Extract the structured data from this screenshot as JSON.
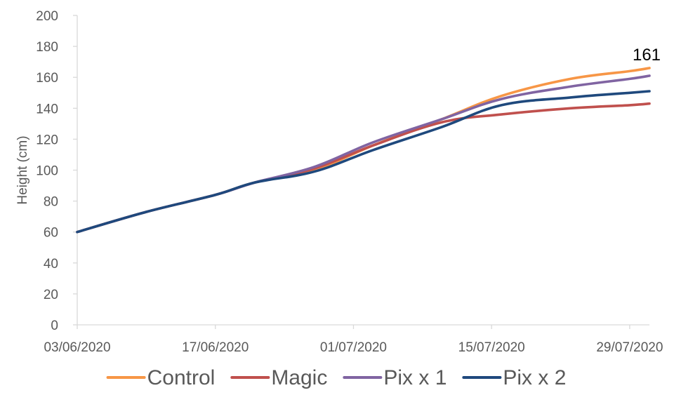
{
  "chart_data": {
    "type": "line",
    "title": "",
    "xlabel": "",
    "ylabel": "Height (cm)",
    "ylim": [
      0,
      200
    ],
    "y_ticks": [
      0,
      20,
      40,
      60,
      80,
      100,
      120,
      140,
      160,
      180,
      200
    ],
    "x_ticks": [
      "03/06/2020",
      "17/06/2020",
      "01/07/2020",
      "15/07/2020",
      "29/07/2020"
    ],
    "x": [
      "03/06/2020",
      "10/06/2020",
      "17/06/2020",
      "21/06/2020",
      "27/06/2020",
      "03/07/2020",
      "10/07/2020",
      "16/07/2020",
      "23/07/2020",
      "29/07/2020",
      "31/07/2020"
    ],
    "series": [
      {
        "name": "Control",
        "color": "#F79646",
        "values": [
          60,
          73,
          84,
          92,
          100,
          116,
          133,
          148,
          159,
          164,
          166
        ]
      },
      {
        "name": "Magic",
        "color": "#C0504D",
        "values": [
          60,
          73,
          84,
          92,
          101,
          116,
          131,
          136,
          140,
          142,
          143
        ]
      },
      {
        "name": "Pix x 1",
        "color": "#8064A2",
        "values": [
          60,
          73,
          84,
          92,
          102,
          118,
          133,
          146,
          154,
          159,
          161
        ]
      },
      {
        "name": "Pix x 2",
        "color": "#1F497D",
        "values": [
          60,
          73,
          84,
          92,
          99,
          113,
          128,
          142,
          147,
          150,
          151
        ]
      }
    ],
    "data_labels": [
      {
        "series": "Pix x 1",
        "point": 10,
        "text": "161"
      }
    ],
    "grid": false,
    "legend": "bottom"
  }
}
